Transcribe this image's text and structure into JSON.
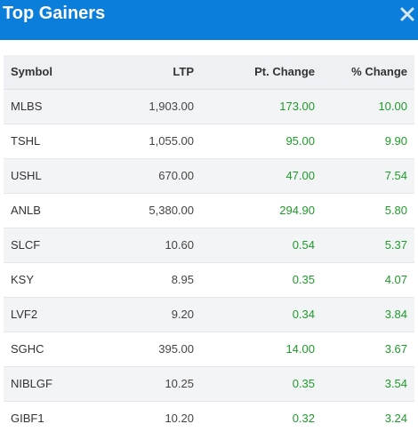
{
  "header": {
    "title": "Top Gainers",
    "close_icon": "close-icon"
  },
  "table": {
    "columns": [
      "Symbol",
      "LTP",
      "Pt. Change",
      "% Change"
    ],
    "rows": [
      {
        "symbol": "MLBS",
        "ltp": "1,903.00",
        "pt_change": "173.00",
        "pct_change": "10.00"
      },
      {
        "symbol": "TSHL",
        "ltp": "1,055.00",
        "pt_change": "95.00",
        "pct_change": "9.90"
      },
      {
        "symbol": "USHL",
        "ltp": "670.00",
        "pt_change": "47.00",
        "pct_change": "7.54"
      },
      {
        "symbol": "ANLB",
        "ltp": "5,380.00",
        "pt_change": "294.90",
        "pct_change": "5.80"
      },
      {
        "symbol": "SLCF",
        "ltp": "10.60",
        "pt_change": "0.54",
        "pct_change": "5.37"
      },
      {
        "symbol": "KSY",
        "ltp": "8.95",
        "pt_change": "0.35",
        "pct_change": "4.07"
      },
      {
        "symbol": "LVF2",
        "ltp": "9.20",
        "pt_change": "0.34",
        "pct_change": "3.84"
      },
      {
        "symbol": "SGHC",
        "ltp": "395.00",
        "pt_change": "14.00",
        "pct_change": "3.67"
      },
      {
        "symbol": "NIBLGF",
        "ltp": "10.25",
        "pt_change": "0.35",
        "pct_change": "3.54"
      },
      {
        "symbol": "GIBF1",
        "ltp": "10.20",
        "pt_change": "0.32",
        "pct_change": "3.24"
      }
    ]
  },
  "colors": {
    "header_bg": "#0b7dda",
    "gain_text": "#1e9b2a"
  }
}
